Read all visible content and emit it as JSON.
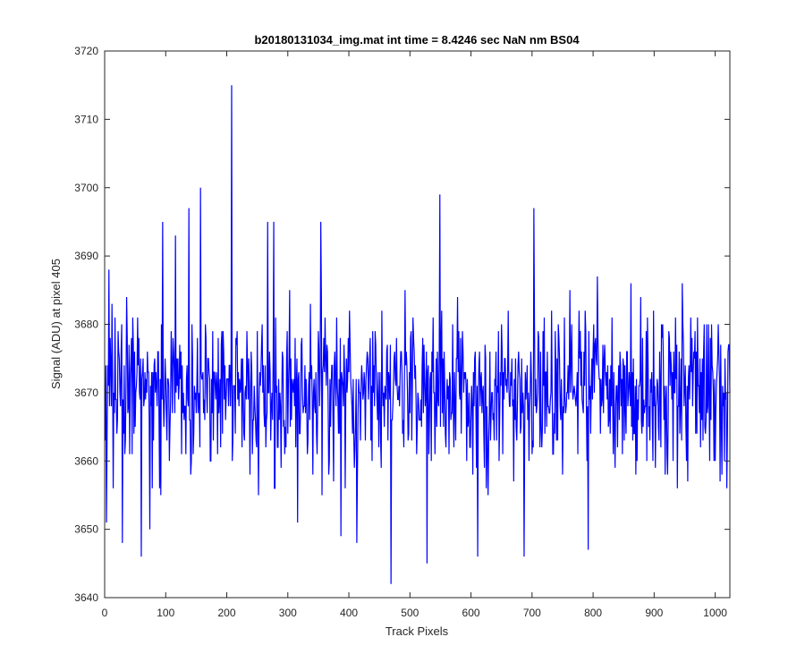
{
  "chart_data": {
    "type": "line",
    "title": "b20180131034_img.mat int time = 8.4246 sec  NaN nm BS04",
    "xlabel": "Track Pixels",
    "ylabel": "Signal (ADU) at pixel 405",
    "xlim": [
      0,
      1024
    ],
    "ylim": [
      3640,
      3720
    ],
    "xticks": [
      0,
      100,
      200,
      300,
      400,
      500,
      600,
      700,
      800,
      900,
      1000
    ],
    "yticks": [
      3640,
      3650,
      3660,
      3670,
      3680,
      3690,
      3700,
      3710,
      3720
    ],
    "grid": false,
    "box": true,
    "series": [
      {
        "color": "#0000ff",
        "generation": {
          "n": 1024,
          "seed": 405,
          "mean": 3670.5,
          "spread": 5.8,
          "min": 3645,
          "max": 3699
        },
        "notable_points": [
          {
            "x": 2,
            "y": 3651
          },
          {
            "x": 6,
            "y": 3688
          },
          {
            "x": 28,
            "y": 3648
          },
          {
            "x": 59,
            "y": 3646
          },
          {
            "x": 73,
            "y": 3650
          },
          {
            "x": 94,
            "y": 3695
          },
          {
            "x": 115,
            "y": 3693
          },
          {
            "x": 137,
            "y": 3697
          },
          {
            "x": 156,
            "y": 3700
          },
          {
            "x": 207,
            "y": 3715
          },
          {
            "x": 266,
            "y": 3695
          },
          {
            "x": 276,
            "y": 3695
          },
          {
            "x": 315,
            "y": 3651
          },
          {
            "x": 353,
            "y": 3695
          },
          {
            "x": 386,
            "y": 3649
          },
          {
            "x": 412,
            "y": 3648
          },
          {
            "x": 468,
            "y": 3642
          },
          {
            "x": 527,
            "y": 3645
          },
          {
            "x": 548,
            "y": 3699
          },
          {
            "x": 610,
            "y": 3646
          },
          {
            "x": 686,
            "y": 3646
          },
          {
            "x": 702,
            "y": 3697
          },
          {
            "x": 791,
            "y": 3647
          }
        ]
      }
    ]
  }
}
